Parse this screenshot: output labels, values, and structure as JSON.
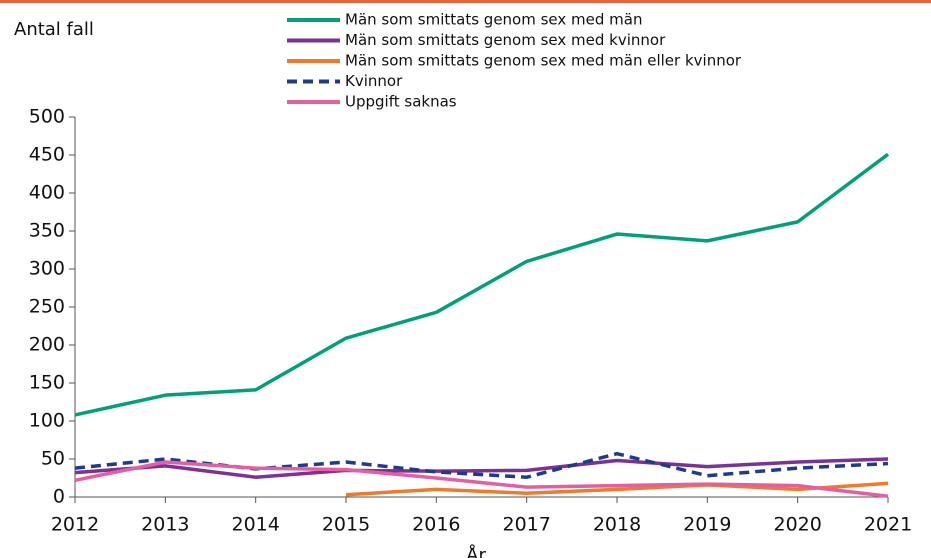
{
  "chart_data": {
    "type": "line",
    "ylabel": "Antal fall",
    "xlabel": "År",
    "categories": [
      "2012",
      "2013",
      "2014",
      "2015",
      "2016",
      "2017",
      "2018",
      "2019",
      "2020",
      "2021"
    ],
    "series": [
      {
        "name": "Män som smittats genom sex med män",
        "color": "#00a07a",
        "dashed": false,
        "values": [
          108,
          134,
          141,
          209,
          243,
          310,
          346,
          337,
          362,
          451
        ]
      },
      {
        "name": "Män som smittats genom sex med kvinnor",
        "color": "#7b3294",
        "dashed": false,
        "values": [
          32,
          41,
          26,
          35,
          34,
          35,
          48,
          40,
          46,
          50
        ]
      },
      {
        "name": "Män som smittats genom sex med män eller kvinnor",
        "color": "#f07a2a",
        "dashed": false,
        "values": [
          null,
          null,
          null,
          3,
          10,
          5,
          10,
          16,
          10,
          18
        ]
      },
      {
        "name": "Kvinnor",
        "color": "#1f3c8c",
        "dashed": true,
        "values": [
          38,
          50,
          37,
          46,
          33,
          26,
          57,
          28,
          38,
          44
        ]
      },
      {
        "name": "Uppgift saknas",
        "color": "#e55ea2",
        "dashed": false,
        "values": [
          22,
          46,
          38,
          36,
          25,
          13,
          15,
          17,
          15,
          1
        ]
      }
    ],
    "ylim": [
      0,
      500
    ],
    "yticks": [
      0,
      50,
      100,
      150,
      200,
      250,
      300,
      350,
      400,
      450,
      500
    ],
    "grid": false,
    "legend": "top"
  }
}
